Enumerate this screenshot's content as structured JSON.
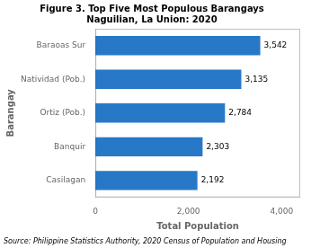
{
  "chart_data": {
    "type": "bar",
    "orientation": "horizontal",
    "title": "Figure 3. Top Five Most Populous Barangays\nNaguilian, La Union: 2020",
    "annotation": "Source: Philippine Statistics Authority, 2020 Census of Population and Housing",
    "categories": [
      "Baraoas Sur",
      "Natividad (Pob.)",
      "Ortiz (Pob.)",
      "Banquir",
      "Casilagan"
    ],
    "values": [
      3542,
      3135,
      2784,
      2303,
      2192
    ],
    "value_labels": [
      "3,542",
      "3,135",
      "2,784",
      "2,303",
      "2,192"
    ],
    "data_labels": true,
    "color": "#2878C8",
    "xlabel": "Total Population",
    "ylabel": "Barangay",
    "xlim": [
      0,
      4400
    ],
    "xticks": [
      0,
      {
        "value": 2000,
        "label": "2,000"
      },
      {
        "value": 4000,
        "label": "4,000"
      }
    ],
    "grid": false
  }
}
